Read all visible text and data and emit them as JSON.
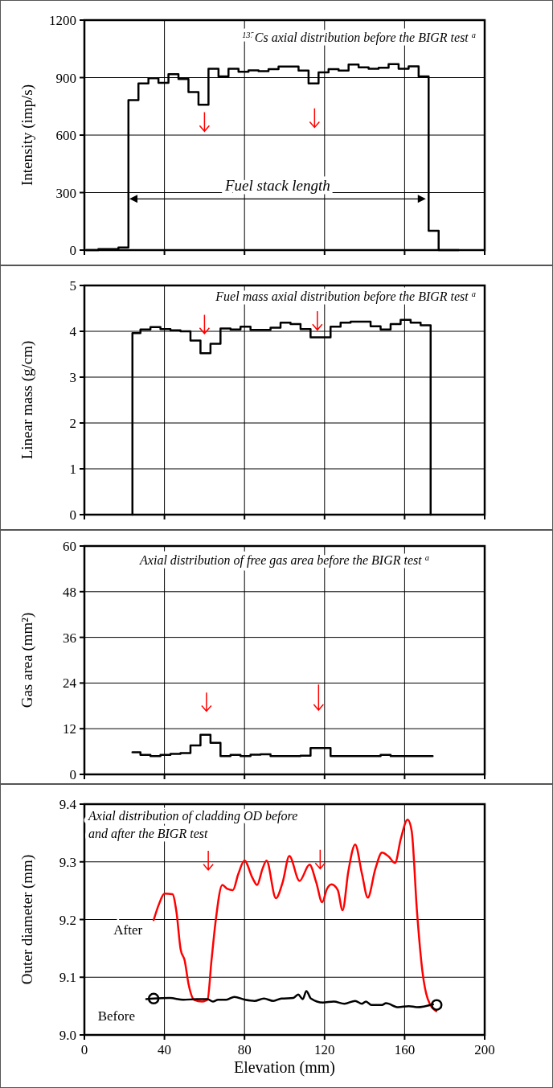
{
  "chart_data": [
    {
      "type": "step",
      "title": "$^{137}$Cs axial distribution before the BIGR test $^{a}$",
      "ylabel": "Intensity (imp/s)",
      "xlim": [
        0,
        200
      ],
      "xticks": [
        0,
        40,
        80,
        120,
        160,
        200
      ],
      "ylim": [
        0,
        1200
      ],
      "yticks": [
        0,
        300,
        600,
        900,
        1200
      ],
      "grid": true,
      "legend": false,
      "tick_labels": "y",
      "x": [
        1,
        7,
        17,
        22,
        27,
        32,
        37,
        42,
        47,
        52,
        57,
        62,
        67,
        72,
        77,
        82,
        87,
        92,
        97,
        102,
        107,
        112,
        117,
        122,
        127,
        132,
        137,
        142,
        147,
        152,
        157,
        162,
        167,
        172,
        177,
        187
      ],
      "series": [
        {
          "color": "#000000",
          "values": [
            0,
            5,
            14,
            782,
            870,
            897,
            873,
            918,
            893,
            824,
            758,
            946,
            906,
            946,
            930,
            938,
            934,
            944,
            958,
            958,
            937,
            870,
            927,
            944,
            937,
            968,
            954,
            946,
            951,
            970,
            946,
            959,
            906,
            101,
            0,
            0
          ]
        }
      ],
      "annotations": [
        "Fuel stack length"
      ]
    },
    {
      "type": "step",
      "title": "Fuel mass axial distribution before the BIGR test $^{a}$",
      "ylabel": "Linear mass (g/cm)",
      "xlim": [
        0,
        200
      ],
      "xticks": [
        0,
        40,
        80,
        120,
        160,
        200
      ],
      "ylim": [
        0,
        5
      ],
      "yticks": [
        0,
        1,
        2,
        3,
        4,
        5
      ],
      "grid": true,
      "legend": false,
      "tick_labels": "y",
      "x": [
        24,
        24,
        28,
        33,
        38,
        43,
        48,
        53,
        58,
        63,
        68,
        73,
        78,
        83,
        88,
        93,
        98,
        103,
        108,
        113,
        118,
        123,
        128,
        133,
        138,
        143,
        148,
        153,
        158,
        163,
        168,
        173
      ],
      "series": [
        {
          "color": "#000000",
          "values": [
            0,
            3.96,
            4.04,
            4.09,
            4.05,
            4.02,
            4.0,
            3.8,
            3.52,
            3.73,
            4.06,
            4.04,
            4.1,
            4.03,
            4.03,
            4.08,
            4.19,
            4.16,
            4.05,
            3.87,
            3.87,
            4.1,
            4.19,
            4.21,
            4.21,
            4.11,
            4.04,
            4.16,
            4.25,
            4.19,
            4.13,
            0
          ]
        }
      ]
    },
    {
      "type": "step",
      "title": "Axial distribution of free gas area before the BIGR test $^{a}$",
      "ylabel": "Gas area (mm²)",
      "xlim": [
        0,
        200
      ],
      "xticks": [
        0,
        40,
        80,
        120,
        160,
        200
      ],
      "ylim": [
        0,
        60
      ],
      "yticks": [
        0,
        12,
        24,
        36,
        48,
        60
      ],
      "grid": true,
      "legend": false,
      "tick_labels": "y",
      "x": [
        24,
        28,
        33,
        38,
        43,
        48,
        53,
        58,
        63,
        68,
        73,
        78,
        83,
        88,
        93,
        108,
        113,
        123,
        148,
        153,
        174
      ],
      "series": [
        {
          "color": "#000000",
          "values": [
            5.8,
            5.1,
            4.8,
            5.1,
            5.4,
            5.6,
            7.6,
            10.4,
            8.3,
            4.8,
            5.1,
            4.8,
            5.2,
            5.3,
            4.8,
            4.9,
            6.9,
            4.8,
            5.1,
            4.8,
            4.8
          ]
        }
      ]
    },
    {
      "type": "line",
      "title": "Axial distribution of cladding OD before and after the BIGR test",
      "ylabel": "Outer diameter (mm)",
      "xlabel": "Elevation (mm)",
      "xlim": [
        0,
        200
      ],
      "xticks": [
        0,
        40,
        80,
        120,
        160,
        200
      ],
      "ylim": [
        9.0,
        9.4
      ],
      "yticks": [
        {
          "value": 9.0,
          "label": "9.0"
        },
        {
          "value": 9.1,
          "label": "9.1"
        },
        {
          "value": 9.2,
          "label": "9.2"
        },
        {
          "value": 9.3,
          "label": "9.3"
        },
        {
          "value": 9.4,
          "label": "9.4"
        }
      ],
      "grid": true,
      "legend": false,
      "marker": "none",
      "series": [
        {
          "name": "After",
          "color": "#ff0000",
          "x": [
            34.6,
            37.3,
            40,
            44,
            46,
            48.1,
            50.1,
            52.1,
            54.8,
            58.8,
            61.5,
            63.5,
            65.5,
            68.9,
            71.5,
            74.2,
            76.9,
            80,
            84,
            86.3,
            89,
            91,
            95.7,
            99.1,
            102.4,
            107.5,
            112.5,
            115.8,
            118.8,
            121.2,
            123.5,
            126.6,
            129,
            131.9,
            135.3,
            138.7,
            141.6,
            145.4,
            148.7,
            152.1,
            155.2,
            158.1,
            161.5,
            163.5,
            166.2,
            168.9,
            171.5,
            175.8
          ],
          "values": [
            9.199,
            9.227,
            9.245,
            9.244,
            9.213,
            9.148,
            9.129,
            9.087,
            9.061,
            9.058,
            9.061,
            9.129,
            9.195,
            9.26,
            9.253,
            9.251,
            9.279,
            9.302,
            9.272,
            9.26,
            9.288,
            9.302,
            9.237,
            9.265,
            9.31,
            9.267,
            9.295,
            9.265,
            9.23,
            9.253,
            9.261,
            9.251,
            9.216,
            9.284,
            9.33,
            9.279,
            9.238,
            9.288,
            9.316,
            9.309,
            9.298,
            9.34,
            9.373,
            9.354,
            9.213,
            9.11,
            9.063,
            9.041
          ]
        },
        {
          "name": "Before",
          "color": "#000000",
          "x": [
            30.9,
            34.6,
            42.7,
            49.4,
            56.1,
            61.5,
            64.2,
            66.8,
            70.9,
            74.9,
            80.3,
            85,
            89.7,
            94.4,
            98.4,
            104.4,
            106.8,
            109.1,
            110.9,
            113.2,
            119.2,
            124.6,
            129.9,
            135.3,
            138.7,
            140.7,
            143.4,
            148.7,
            150.7,
            156.8,
            162.1,
            166.2,
            174.2
          ],
          "values": [
            9.062,
            9.063,
            9.064,
            9.061,
            9.062,
            9.062,
            9.058,
            9.061,
            9.061,
            9.066,
            9.061,
            9.059,
            9.063,
            9.059,
            9.063,
            9.064,
            9.07,
            9.062,
            9.076,
            9.063,
            9.056,
            9.058,
            9.054,
            9.059,
            9.054,
            9.058,
            9.052,
            9.052,
            9.055,
            9.048,
            9.05,
            9.048,
            9.053
          ]
        },
        {
          "type": "scatter",
          "marker": "circle",
          "color": "#000000",
          "x": [
            34.6,
            176
          ],
          "values": [
            9.063,
            9.052
          ]
        }
      ]
    }
  ]
}
